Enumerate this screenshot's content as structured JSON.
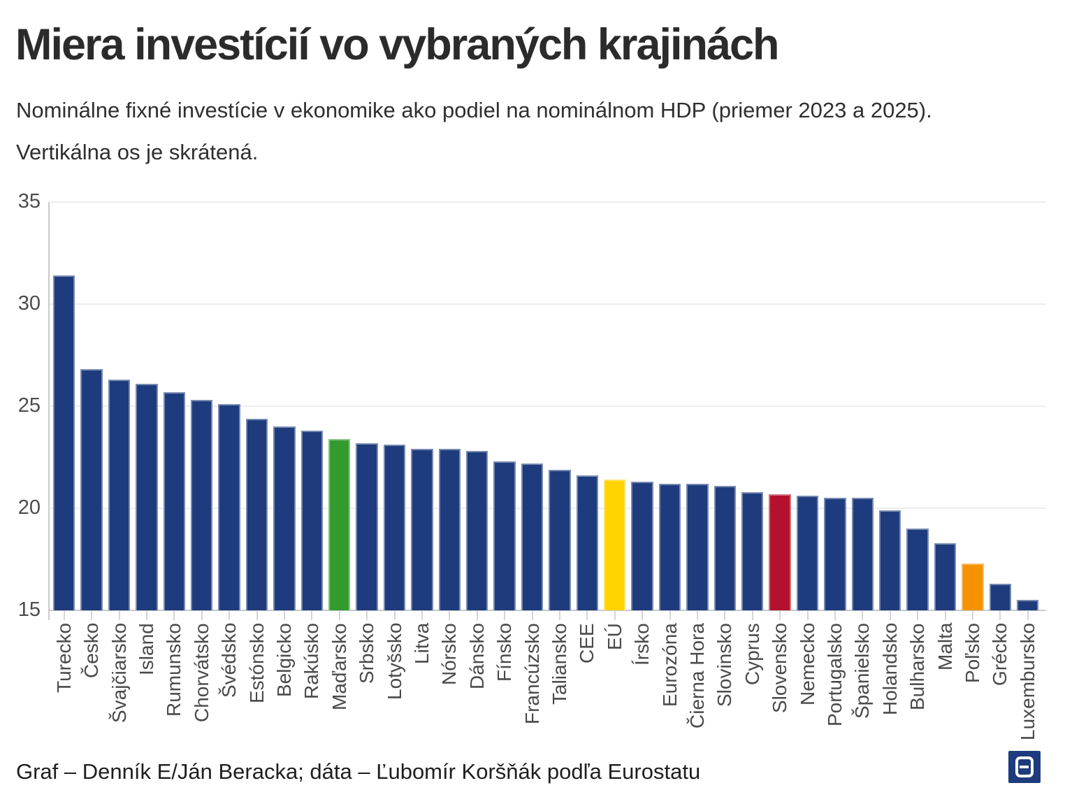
{
  "header": {
    "title": "Miera investícií vo vybraných krajinách",
    "subtitle": "Nominálne fixné investície v ekonomike ako podiel na nominálnom HDP (priemer 2023 a 2025). Vertikálna os je skrátená."
  },
  "chart_data": {
    "type": "bar",
    "title": "Miera investícií vo vybraných krajinách",
    "categories": [
      "Turecko",
      "Česko",
      "Švajčiarsko",
      "Island",
      "Rumunsko",
      "Chorvátsko",
      "Švédsko",
      "Estónsko",
      "Belgicko",
      "Rakúsko",
      "Maďarsko",
      "Srbsko",
      "Lotyšsko",
      "Litva",
      "Nórsko",
      "Dánsko",
      "Fínsko",
      "Francúzsko",
      "Taliansko",
      "CEE",
      "EÚ",
      "Írsko",
      "Eurozóna",
      "Čierna Hora",
      "Slovinsko",
      "Cyprus",
      "Slovensko",
      "Nemecko",
      "Portugalsko",
      "Španielsko",
      "Holandsko",
      "Bulharsko",
      "Malta",
      "Poľsko",
      "Grécko",
      "Luxembursko"
    ],
    "values": [
      31.4,
      26.8,
      26.3,
      26.1,
      25.7,
      25.3,
      25.1,
      24.4,
      24.0,
      23.8,
      23.4,
      23.2,
      23.1,
      22.9,
      22.9,
      22.8,
      22.3,
      22.2,
      21.9,
      21.6,
      21.4,
      21.3,
      21.2,
      21.2,
      21.1,
      20.8,
      20.7,
      20.6,
      20.5,
      20.5,
      19.9,
      19.0,
      18.3,
      17.3,
      16.3,
      15.5
    ],
    "default_color": "#1E3C7D",
    "highlights": [
      {
        "category": "Maďarsko",
        "color": "#339B2E"
      },
      {
        "category": "EÚ",
        "color": "#FFD300"
      },
      {
        "category": "Slovensko",
        "color": "#B3112D"
      },
      {
        "category": "Poľsko",
        "color": "#F49200"
      }
    ],
    "xlabel": "",
    "ylabel": "",
    "ylim": [
      15,
      35
    ],
    "yticks": [
      15,
      20,
      25,
      30,
      35
    ],
    "grid": "horizontal",
    "legend": "none",
    "note": "Vertikálna os je skrátená (y-axis truncated at 15)"
  },
  "footer": {
    "credit": "Graf – Denník E/Ján Beracka; dáta – Ľubomír Koršňák podľa Eurostatu",
    "logo": "dennik-e-logo"
  },
  "colors": {
    "gridline": "#EDEDF1",
    "axis": "#C9C9CF",
    "tick": "#D6D6DA",
    "ytick_text": "#4C4C4C",
    "xtick_text": "#4A4A4A",
    "logo_bg": "#1E3C7D"
  }
}
